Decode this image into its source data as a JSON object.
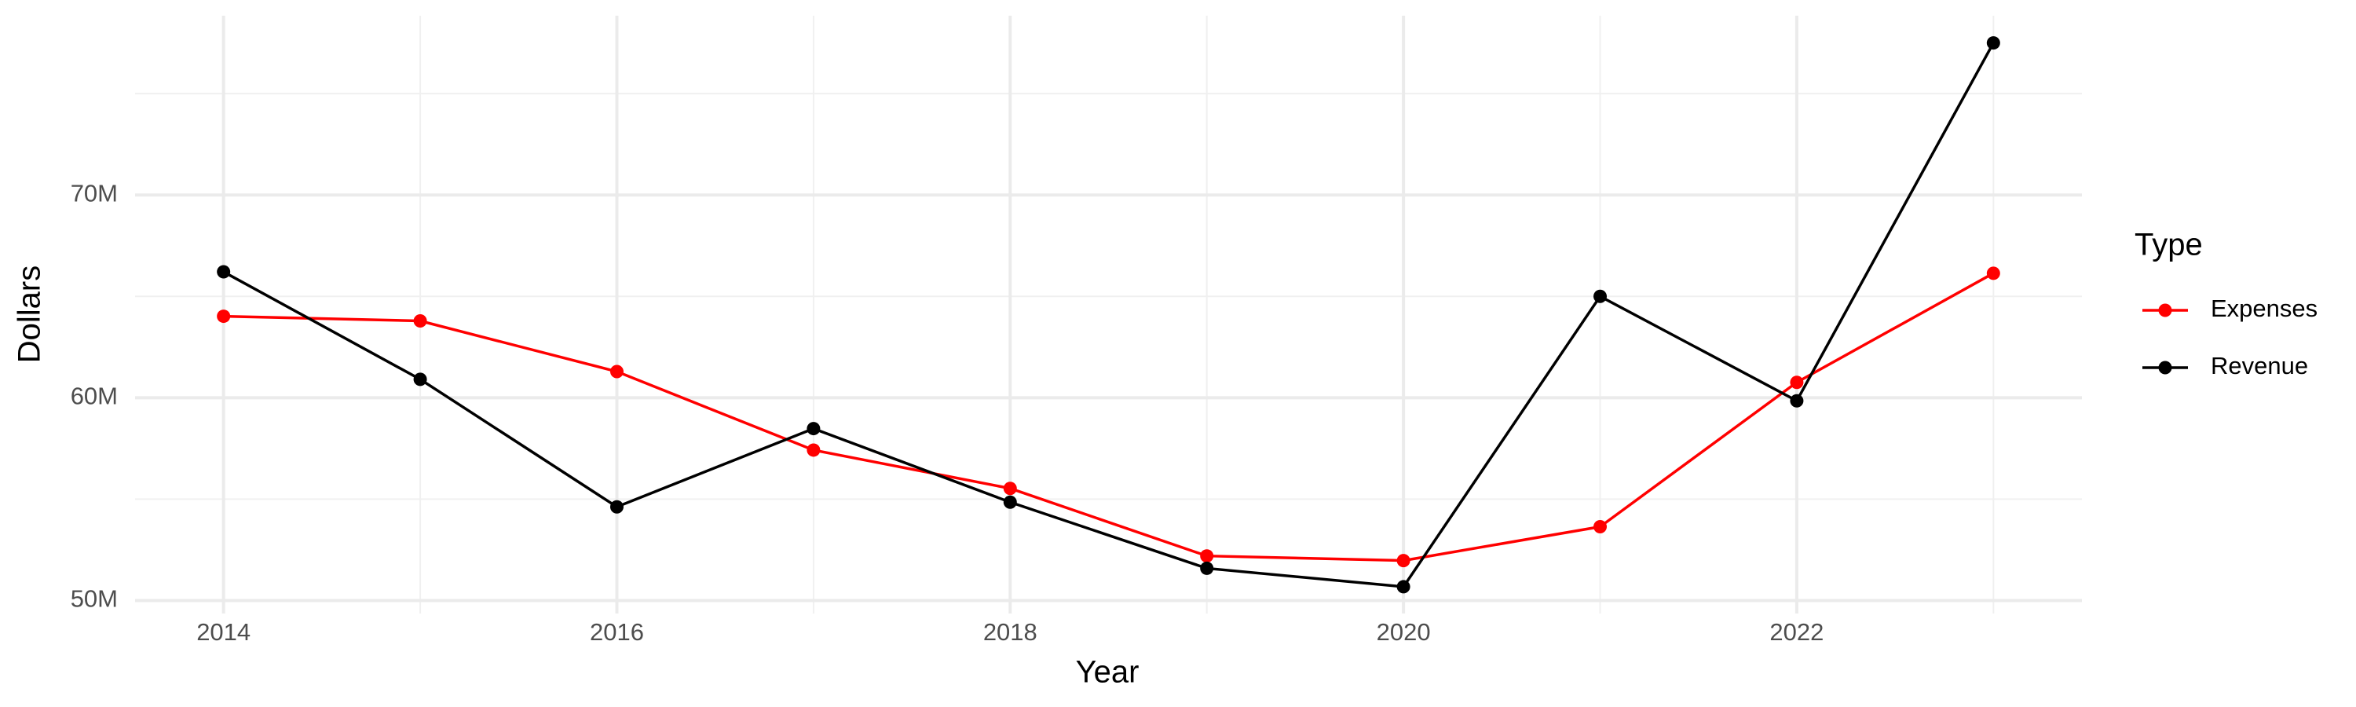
{
  "chart_data": {
    "type": "line",
    "x_label": "Year",
    "y_label": "Dollars",
    "x": [
      2014,
      2015,
      2016,
      2017,
      2018,
      2019,
      2020,
      2021,
      2022,
      2023
    ],
    "series": [
      {
        "name": "Expenses",
        "color": "#ff0000",
        "values": [
          64020000,
          63790000,
          61290000,
          57420000,
          55530000,
          52200000,
          51970000,
          53640000,
          60760000,
          66140000
        ]
      },
      {
        "name": "Revenue",
        "color": "#000000",
        "values": [
          66210000,
          60910000,
          54620000,
          58480000,
          54850000,
          51590000,
          50680000,
          65000000,
          59850000,
          77500000
        ]
      }
    ],
    "legend_title": "Type",
    "legend_position": "right",
    "xlim": [
      2013.55,
      2023.45
    ],
    "xticks": [
      2014,
      2016,
      2018,
      2020,
      2022
    ],
    "minor_xticks": [
      2015,
      2017,
      2019,
      2021,
      2023
    ],
    "ylim": [
      49360000,
      78840000
    ],
    "yticks": [
      {
        "value": 50000000,
        "label": "50M"
      },
      {
        "value": 60000000,
        "label": "60M"
      },
      {
        "value": 70000000,
        "label": "70M"
      }
    ],
    "minor_yticks": [
      55000000,
      65000000,
      75000000
    ],
    "grid": true
  }
}
